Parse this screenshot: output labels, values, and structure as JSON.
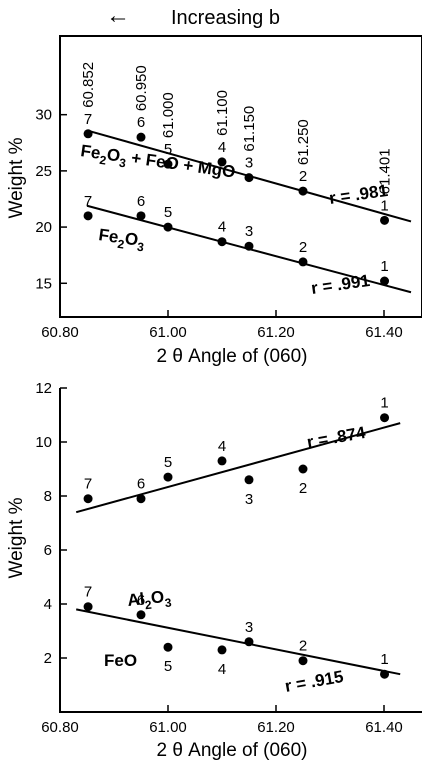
{
  "header": {
    "arrow": "←",
    "text": "Increasing b"
  },
  "chart_data": [
    {
      "type": "scatter",
      "xlabel": "2 θ  Angle of (060)",
      "ylabel": "Weight %",
      "xlim": [
        60.8,
        61.45
      ],
      "ylim": [
        12,
        37
      ],
      "xticks": [
        "60.80",
        "61.00",
        "61.20",
        "61.40"
      ],
      "yticks": [
        15,
        20,
        25,
        30
      ],
      "top_labels": [
        "60.852",
        "60.950",
        "61.000",
        "61.100",
        "61.150",
        "61.250",
        "61.401"
      ],
      "series": [
        {
          "name": "Fe₂O₃ + FeO + MgO",
          "points": [
            {
              "label": "7",
              "x": 60.852,
              "y": 28.3
            },
            {
              "label": "6",
              "x": 60.95,
              "y": 28.0
            },
            {
              "label": "5",
              "x": 61.0,
              "y": 25.6
            },
            {
              "label": "4",
              "x": 61.1,
              "y": 25.8
            },
            {
              "label": "3",
              "x": 61.15,
              "y": 24.4
            },
            {
              "label": "2",
              "x": 61.25,
              "y": 23.2
            },
            {
              "label": "1",
              "x": 61.401,
              "y": 20.6
            }
          ],
          "fit": {
            "x": [
              60.85,
              61.45
            ],
            "y": [
              28.6,
              20.5
            ]
          },
          "r": "r = .981"
        },
        {
          "name": "Fe₂O₃",
          "points": [
            {
              "label": "7",
              "x": 60.852,
              "y": 21.0
            },
            {
              "label": "6",
              "x": 60.95,
              "y": 21.0
            },
            {
              "label": "5",
              "x": 61.0,
              "y": 20.0
            },
            {
              "label": "4",
              "x": 61.1,
              "y": 18.7
            },
            {
              "label": "3",
              "x": 61.15,
              "y": 18.3
            },
            {
              "label": "2",
              "x": 61.25,
              "y": 16.9
            },
            {
              "label": "1",
              "x": 61.401,
              "y": 15.2
            }
          ],
          "fit": {
            "x": [
              60.85,
              61.45
            ],
            "y": [
              21.9,
              14.2
            ]
          },
          "r": "r = .991"
        }
      ]
    },
    {
      "type": "scatter",
      "xlabel": "2 θ  Angle of (060)",
      "ylabel": "Weight %",
      "xlim": [
        60.8,
        61.45
      ],
      "ylim": [
        0,
        12
      ],
      "xticks": [
        "60.80",
        "61.00",
        "61.20",
        "61.40"
      ],
      "yticks": [
        2,
        4,
        6,
        8,
        10,
        12
      ],
      "series": [
        {
          "name": "Al₂O₃",
          "points": [
            {
              "label": "7",
              "x": 60.852,
              "y": 7.9
            },
            {
              "label": "6",
              "x": 60.95,
              "y": 7.9
            },
            {
              "label": "5",
              "x": 61.0,
              "y": 8.7
            },
            {
              "label": "4",
              "x": 61.1,
              "y": 9.3
            },
            {
              "label": "3",
              "x": 61.15,
              "y": 8.6
            },
            {
              "label": "2",
              "x": 61.25,
              "y": 9.0
            },
            {
              "label": "1",
              "x": 61.401,
              "y": 10.9
            }
          ],
          "fit": {
            "x": [
              60.83,
              61.43
            ],
            "y": [
              7.4,
              10.7
            ]
          },
          "r": "r = .874"
        },
        {
          "name": "FeO",
          "points": [
            {
              "label": "7",
              "x": 60.852,
              "y": 3.9
            },
            {
              "label": "6",
              "x": 60.95,
              "y": 3.6
            },
            {
              "label": "5",
              "x": 61.0,
              "y": 2.4
            },
            {
              "label": "4",
              "x": 61.1,
              "y": 2.3
            },
            {
              "label": "3",
              "x": 61.15,
              "y": 2.6
            },
            {
              "label": "2",
              "x": 61.25,
              "y": 1.9
            },
            {
              "label": "1",
              "x": 61.401,
              "y": 1.4
            }
          ],
          "fit": {
            "x": [
              60.83,
              61.43
            ],
            "y": [
              3.8,
              1.4
            ]
          },
          "r": "r = .915"
        }
      ]
    }
  ]
}
